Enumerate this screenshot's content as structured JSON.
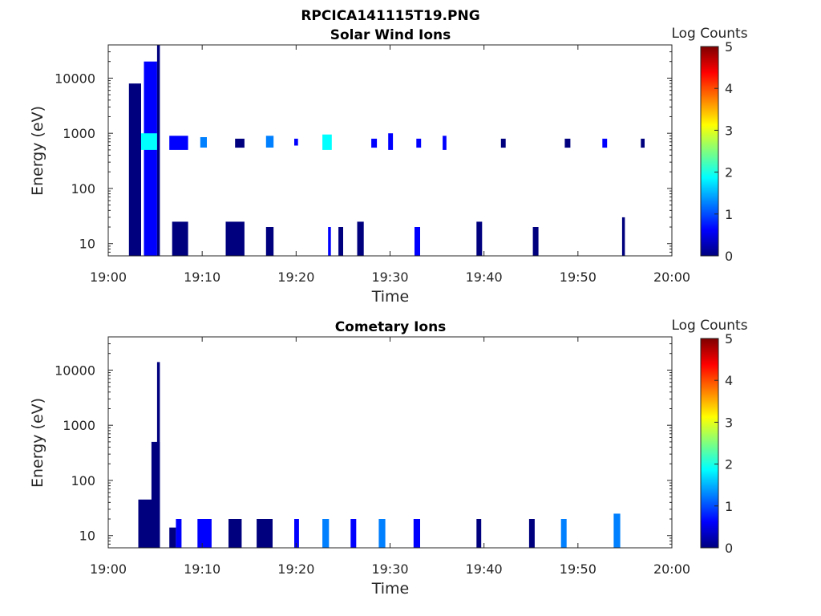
{
  "figure_title": "RPCICA141115T19.PNG",
  "colormap": [
    "#00007f",
    "#0000ff",
    "#007fff",
    "#00ffff",
    "#7fff7f",
    "#ffff00",
    "#ff7f00",
    "#ff0000",
    "#7f0000"
  ],
  "chart_data": [
    {
      "type": "heatmap",
      "title": "Solar Wind Ions",
      "xlabel": "Time",
      "ylabel": "Energy (eV)",
      "x_ticks": [
        "19:00",
        "19:10",
        "19:20",
        "19:30",
        "19:40",
        "19:50",
        "20:00"
      ],
      "xlim_minutes": [
        0,
        60
      ],
      "y_scale": "log",
      "y_ticks": [
        10,
        100,
        1000,
        10000
      ],
      "y_tick_labels": [
        "10",
        "100",
        "1000",
        "10000"
      ],
      "ylim": [
        6,
        40000
      ],
      "colorbar": {
        "label": "Log Counts",
        "range": [
          0,
          5
        ],
        "ticks": [
          "0",
          "1",
          "2",
          "3",
          "4",
          "5"
        ]
      },
      "features": [
        {
          "t": [
            2.2,
            3.5
          ],
          "e": [
            6,
            8000
          ],
          "level": 0.3
        },
        {
          "t": [
            3.8,
            5.2
          ],
          "e": [
            6,
            20000
          ],
          "level": 0.4
        },
        {
          "t": [
            5.2,
            5.5
          ],
          "e": [
            6,
            40000
          ],
          "level": 0.2
        },
        {
          "t": [
            3.5,
            5.2
          ],
          "e": [
            500,
            1000
          ],
          "level": 2.0
        },
        {
          "t": [
            6.5,
            8.5
          ],
          "e": [
            500,
            900
          ],
          "level": 0.6
        },
        {
          "t": [
            6.8,
            8.5
          ],
          "e": [
            6,
            25
          ],
          "level": 0.2
        },
        {
          "t": [
            9.8,
            10.5
          ],
          "e": [
            550,
            850
          ],
          "level": 1.5
        },
        {
          "t": [
            12.5,
            14.5
          ],
          "e": [
            6,
            25
          ],
          "level": 0.2
        },
        {
          "t": [
            13.5,
            14.5
          ],
          "e": [
            550,
            800
          ],
          "level": 0.3
        },
        {
          "t": [
            16.8,
            17.6
          ],
          "e": [
            6,
            20
          ],
          "level": 0.3
        },
        {
          "t": [
            16.8,
            17.6
          ],
          "e": [
            550,
            900
          ],
          "level": 1.2
        },
        {
          "t": [
            19.8,
            20.2
          ],
          "e": [
            600,
            800
          ],
          "level": 0.4
        },
        {
          "t": [
            22.8,
            23.8
          ],
          "e": [
            500,
            950
          ],
          "level": 1.6
        },
        {
          "t": [
            23.4,
            23.7
          ],
          "e": [
            6,
            20
          ],
          "level": 0.5
        },
        {
          "t": [
            24.5,
            25.0
          ],
          "e": [
            6,
            20
          ],
          "level": 0.3
        },
        {
          "t": [
            26.5,
            27.2
          ],
          "e": [
            6,
            25
          ],
          "level": 0.3
        },
        {
          "t": [
            28.0,
            28.6
          ],
          "e": [
            550,
            800
          ],
          "level": 0.5
        },
        {
          "t": [
            29.8,
            30.3
          ],
          "e": [
            500,
            1000
          ],
          "level": 0.6
        },
        {
          "t": [
            32.8,
            33.3
          ],
          "e": [
            550,
            800
          ],
          "level": 0.4
        },
        {
          "t": [
            32.6,
            33.2
          ],
          "e": [
            6,
            20
          ],
          "level": 0.5
        },
        {
          "t": [
            35.6,
            36.0
          ],
          "e": [
            500,
            900
          ],
          "level": 0.8
        },
        {
          "t": [
            39.2,
            39.8
          ],
          "e": [
            6,
            25
          ],
          "level": 0.2
        },
        {
          "t": [
            41.8,
            42.3
          ],
          "e": [
            550,
            800
          ],
          "level": 0.3
        },
        {
          "t": [
            45.2,
            45.8
          ],
          "e": [
            6,
            20
          ],
          "level": 0.2
        },
        {
          "t": [
            48.6,
            49.2
          ],
          "e": [
            550,
            800
          ],
          "level": 0.3
        },
        {
          "t": [
            52.6,
            53.1
          ],
          "e": [
            550,
            800
          ],
          "level": 0.4
        },
        {
          "t": [
            54.7,
            55.0
          ],
          "e": [
            6,
            30
          ],
          "level": 0.2
        },
        {
          "t": [
            56.7,
            57.1
          ],
          "e": [
            550,
            800
          ],
          "level": 0.3
        }
      ]
    },
    {
      "type": "heatmap",
      "title": "Cometary Ions",
      "xlabel": "Time",
      "ylabel": "Energy (eV)",
      "x_ticks": [
        "19:00",
        "19:10",
        "19:20",
        "19:30",
        "19:40",
        "19:50",
        "20:00"
      ],
      "xlim_minutes": [
        0,
        60
      ],
      "y_scale": "log",
      "y_ticks": [
        10,
        100,
        1000,
        10000
      ],
      "y_tick_labels": [
        "10",
        "100",
        "1000",
        "10000"
      ],
      "ylim": [
        6,
        40000
      ],
      "colorbar": {
        "label": "Log Counts",
        "range": [
          0,
          5
        ],
        "ticks": [
          "0",
          "1",
          "2",
          "3",
          "4",
          "5"
        ]
      },
      "features": [
        {
          "t": [
            3.2,
            4.8
          ],
          "e": [
            6,
            45
          ],
          "level": 0.2
        },
        {
          "t": [
            4.6,
            5.5
          ],
          "e": [
            6,
            500
          ],
          "level": 0.3
        },
        {
          "t": [
            5.2,
            5.5
          ],
          "e": [
            6,
            14000
          ],
          "level": 0.2
        },
        {
          "t": [
            6.5,
            7.2
          ],
          "e": [
            6,
            14
          ],
          "level": 0.2
        },
        {
          "t": [
            7.2,
            7.8
          ],
          "e": [
            6,
            20
          ],
          "level": 0.5
        },
        {
          "t": [
            9.5,
            11.0
          ],
          "e": [
            6,
            20
          ],
          "level": 0.5
        },
        {
          "t": [
            12.8,
            14.2
          ],
          "e": [
            6,
            20
          ],
          "level": 0.3
        },
        {
          "t": [
            15.8,
            17.5
          ],
          "e": [
            6,
            20
          ],
          "level": 0.2
        },
        {
          "t": [
            19.8,
            20.3
          ],
          "e": [
            6,
            20
          ],
          "level": 0.4
        },
        {
          "t": [
            22.8,
            23.5
          ],
          "e": [
            6,
            20
          ],
          "level": 1.2
        },
        {
          "t": [
            25.8,
            26.4
          ],
          "e": [
            6,
            20
          ],
          "level": 0.6
        },
        {
          "t": [
            28.8,
            29.5
          ],
          "e": [
            6,
            20
          ],
          "level": 1.0
        },
        {
          "t": [
            32.5,
            33.2
          ],
          "e": [
            6,
            20
          ],
          "level": 0.6
        },
        {
          "t": [
            39.2,
            39.7
          ],
          "e": [
            6,
            20
          ],
          "level": 0.3
        },
        {
          "t": [
            44.8,
            45.4
          ],
          "e": [
            6,
            20
          ],
          "level": 0.3
        },
        {
          "t": [
            48.2,
            48.8
          ],
          "e": [
            6,
            20
          ],
          "level": 1.2
        },
        {
          "t": [
            53.8,
            54.5
          ],
          "e": [
            6,
            25
          ],
          "level": 1.2
        }
      ]
    }
  ]
}
